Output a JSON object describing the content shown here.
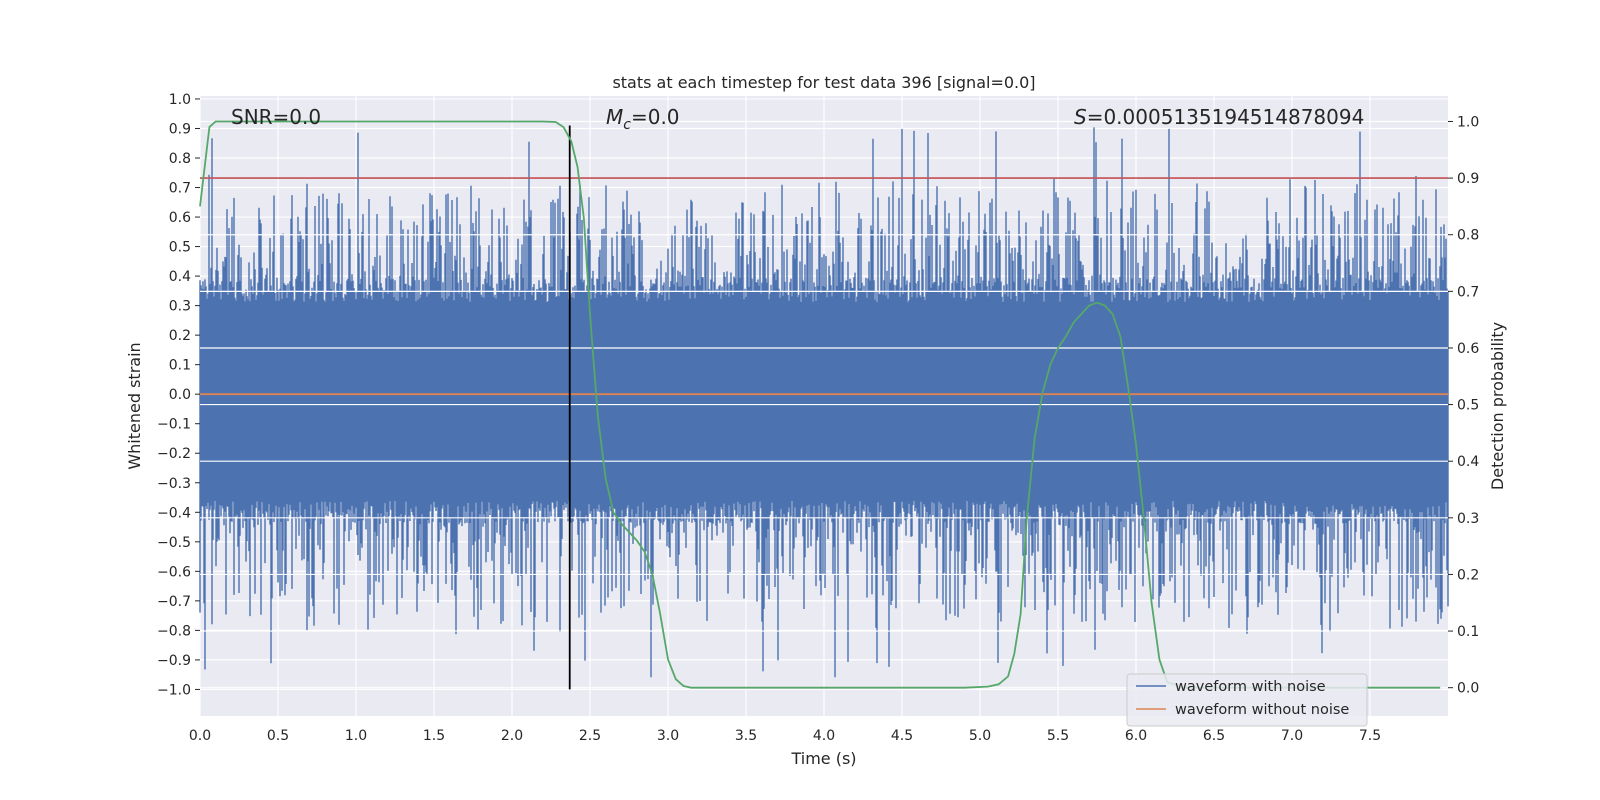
{
  "chart_data": {
    "type": "line",
    "title": "stats at each timestep for test data 396 [signal=0.0]",
    "xlabel": "Time (s)",
    "ylabel_left": "Whitened strain",
    "ylabel_right": "Detection probability",
    "xlim": [
      0.0,
      8.0
    ],
    "ylim_left": [
      -1.09,
      1.01
    ],
    "ylim_right": [
      -0.05,
      1.045
    ],
    "x_ticks": [
      "0.0",
      "0.5",
      "1.0",
      "1.5",
      "2.0",
      "2.5",
      "3.0",
      "3.5",
      "4.0",
      "4.5",
      "5.0",
      "5.5",
      "6.0",
      "6.5",
      "7.0",
      "7.5"
    ],
    "y_left_ticks": [
      "1.0",
      "0.9",
      "0.8",
      "0.7",
      "0.6",
      "0.5",
      "0.4",
      "0.3",
      "0.2",
      "0.1",
      "0.0",
      "−0.1",
      "−0.2",
      "−0.3",
      "−0.4",
      "−0.5",
      "−0.6",
      "−0.7",
      "−0.8",
      "−0.9",
      "−1.0"
    ],
    "y_right_ticks": [
      "1.0",
      "0.9",
      "0.8",
      "0.7",
      "0.6",
      "0.5",
      "0.4",
      "0.3",
      "0.2",
      "0.1",
      "0.0"
    ],
    "grid": true,
    "legend_position": "lower-right",
    "legend": [
      {
        "label": "waveform with noise",
        "color": "#4c72b0"
      },
      {
        "label": "waveform without noise",
        "color": "#dd8452"
      }
    ],
    "annotations": {
      "snr": "SNR=0.0",
      "mc_symbol": "M",
      "mc_sub": "c",
      "mc_value": "=0.0",
      "s_symbol": "S",
      "s_value": "=0.0005135194514878094"
    },
    "threshold": {
      "value": 0.9,
      "axis": "right",
      "color": "#c44e52"
    },
    "merger_line": {
      "x": 2.37,
      "y_range_left": [
        -1.0,
        0.91
      ],
      "color": "#000000"
    },
    "series": [
      {
        "name": "waveform with noise",
        "axis": "left",
        "color": "#4c72b0",
        "description": "noise strain, roughly symmetric about 0, spikes up to about ±0.9",
        "amplitude_envelope": {
          "core": 0.38,
          "peak_max": 0.91,
          "peak_min": -0.96
        }
      },
      {
        "name": "waveform without noise",
        "axis": "left",
        "color": "#dd8452",
        "x": [
          0.0,
          8.0
        ],
        "values": [
          0.0,
          0.0
        ]
      },
      {
        "name": "Detection probability",
        "axis": "right",
        "color": "#55a868",
        "x": [
          0.0,
          0.03,
          0.06,
          0.1,
          0.15,
          0.3,
          1.0,
          2.0,
          2.2,
          2.28,
          2.33,
          2.38,
          2.42,
          2.46,
          2.5,
          2.55,
          2.6,
          2.65,
          2.7,
          2.75,
          2.8,
          2.85,
          2.9,
          2.95,
          3.0,
          3.05,
          3.1,
          3.15,
          3.3,
          4.0,
          4.5,
          4.9,
          5.05,
          5.12,
          5.18,
          5.22,
          5.26,
          5.3,
          5.35,
          5.4,
          5.45,
          5.5,
          5.55,
          5.6,
          5.65,
          5.7,
          5.75,
          5.8,
          5.85,
          5.9,
          5.95,
          6.0,
          6.05,
          6.1,
          6.15,
          6.2,
          6.3,
          7.0,
          7.5,
          7.95
        ],
        "values": [
          0.85,
          0.92,
          0.99,
          1.0,
          1.0,
          1.0,
          1.0,
          1.0,
          1.0,
          0.999,
          0.99,
          0.965,
          0.92,
          0.83,
          0.66,
          0.48,
          0.37,
          0.31,
          0.29,
          0.275,
          0.26,
          0.24,
          0.2,
          0.13,
          0.05,
          0.015,
          0.003,
          0.0,
          0.0,
          0.0,
          0.0,
          0.0,
          0.002,
          0.006,
          0.02,
          0.06,
          0.13,
          0.3,
          0.44,
          0.52,
          0.57,
          0.6,
          0.62,
          0.645,
          0.66,
          0.675,
          0.68,
          0.675,
          0.66,
          0.62,
          0.53,
          0.43,
          0.3,
          0.15,
          0.05,
          0.01,
          0.0,
          0.0,
          0.0,
          0.0
        ]
      }
    ]
  }
}
